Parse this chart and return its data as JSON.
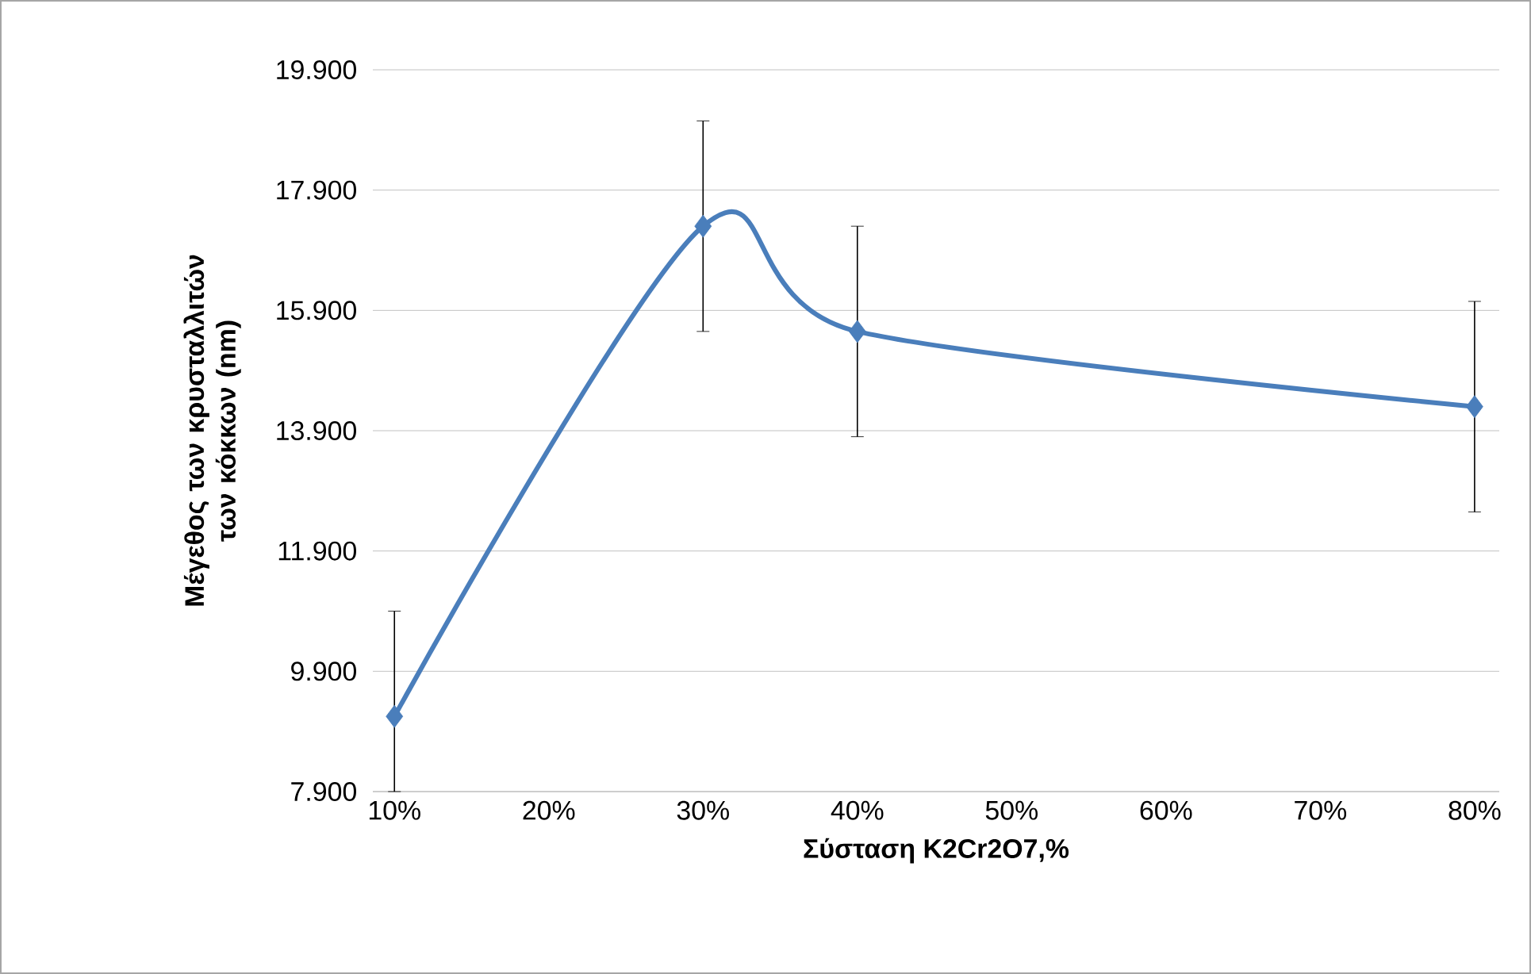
{
  "chart_data": {
    "type": "line",
    "xlabel": "Σύσταση K2Cr2O7,%",
    "ylabel": "Μέγεθος των κρυσταλλιτών των κόκκων (nm)",
    "categories": [
      "10%",
      "20%",
      "30%",
      "40%",
      "50%",
      "60%",
      "70%",
      "80%"
    ],
    "series": [
      {
        "color": "#4a7ebb",
        "values": [
          9.15,
          null,
          17.3,
          15.55,
          null,
          null,
          null,
          14.3
        ],
        "errors": [
          [
            7.9,
            10.9
          ],
          null,
          1.75,
          1.75,
          null,
          null,
          null,
          1.75
        ]
      }
    ],
    "ylim": [
      7.9,
      19.9
    ],
    "yticks": [
      {
        "value": 7.9,
        "label": "7.900"
      },
      {
        "value": 9.9,
        "label": "9.900"
      },
      {
        "value": 11.9,
        "label": "11.900"
      },
      {
        "value": 13.9,
        "label": "13.900"
      },
      {
        "value": 15.9,
        "label": "15.900"
      },
      {
        "value": 17.9,
        "label": "17.900"
      },
      {
        "value": 19.9,
        "label": "19.900"
      }
    ],
    "grid": "y",
    "marker": "diamond",
    "line_style": "solid"
  }
}
